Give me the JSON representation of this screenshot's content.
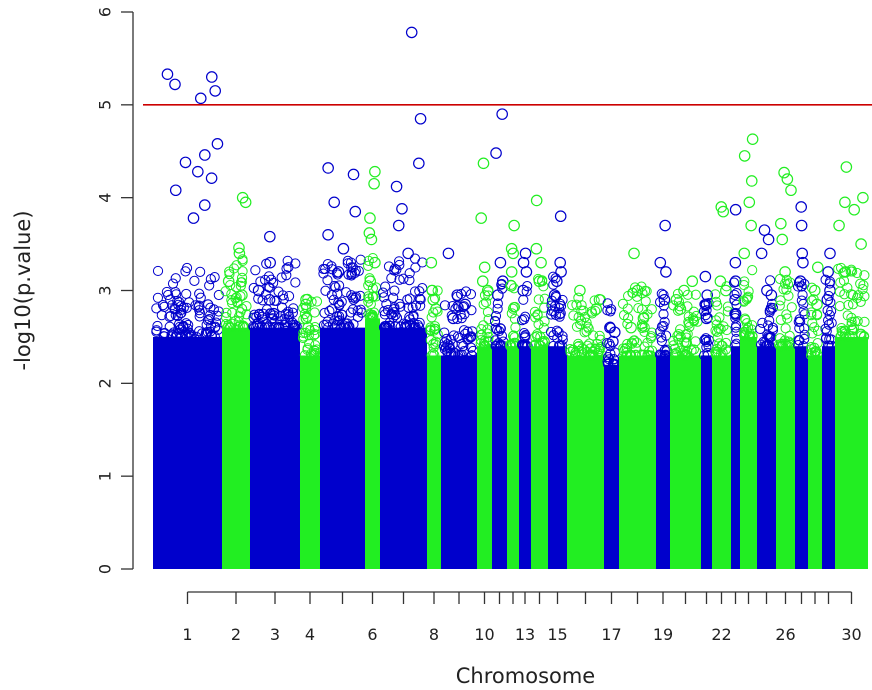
{
  "chart_data": {
    "type": "scatter",
    "xlabel": "Chromosome",
    "ylabel": "-log10(p.value)",
    "ylim": [
      0,
      6
    ],
    "y_ticks": [
      "0",
      "1",
      "2",
      "3",
      "4",
      "5",
      "6"
    ],
    "chromosome_labels": [
      "1",
      "2",
      "3",
      "4",
      "6",
      "8",
      "10",
      "13",
      "15",
      "17",
      "19",
      "22",
      "26",
      "30"
    ],
    "threshold": {
      "value": 5,
      "color": "#cc0000"
    },
    "colors": {
      "odd": "#0000cc",
      "even": "#22ee22"
    },
    "grid": false,
    "legend": "none",
    "chromosomes": [
      {
        "chr": 1,
        "dense_max": 2.5,
        "top_hits": [
          5.33,
          5.3,
          5.22,
          5.15,
          5.07,
          4.58,
          4.46,
          4.38,
          4.28,
          4.21,
          4.08,
          3.92,
          3.78
        ]
      },
      {
        "chr": 2,
        "dense_max": 2.6,
        "top_hits": [
          4.0,
          3.95,
          3.46,
          3.4,
          3.1,
          2.95
        ]
      },
      {
        "chr": 3,
        "dense_max": 2.6,
        "top_hits": [
          3.58,
          3.3,
          3.0,
          2.9,
          2.75
        ]
      },
      {
        "chr": 4,
        "dense_max": 2.3,
        "top_hits": [
          2.9,
          2.85,
          2.7,
          2.6
        ]
      },
      {
        "chr": 5,
        "dense_max": 2.6,
        "top_hits": [
          4.32,
          4.25,
          3.95,
          3.85,
          3.6,
          3.45,
          3.2
        ]
      },
      {
        "chr": 6,
        "dense_max": 2.7,
        "top_hits": [
          4.28,
          4.15,
          3.78,
          3.62,
          3.55,
          3.3,
          3.1
        ]
      },
      {
        "chr": 7,
        "dense_max": 2.6,
        "top_hits": [
          5.78,
          4.85,
          4.37,
          4.12,
          3.88,
          3.7,
          3.4
        ]
      },
      {
        "chr": 8,
        "dense_max": 2.3,
        "top_hits": [
          3.3,
          3.0,
          2.9,
          2.8
        ]
      },
      {
        "chr": 9,
        "dense_max": 2.3,
        "top_hits": [
          3.4,
          2.95,
          2.85,
          2.7
        ]
      },
      {
        "chr": 10,
        "dense_max": 2.4,
        "top_hits": [
          4.37,
          3.78,
          3.25,
          3.1,
          3.0
        ]
      },
      {
        "chr": 11,
        "dense_max": 2.4,
        "top_hits": [
          4.9,
          4.48,
          3.3,
          3.1,
          2.95
        ]
      },
      {
        "chr": 12,
        "dense_max": 2.4,
        "top_hits": [
          3.7,
          3.45,
          3.4,
          3.2,
          3.05
        ]
      },
      {
        "chr": 13,
        "dense_max": 2.4,
        "top_hits": [
          3.4,
          3.3,
          3.2,
          3.0
        ]
      },
      {
        "chr": 14,
        "dense_max": 2.4,
        "top_hits": [
          3.97,
          3.45,
          3.3,
          3.1
        ]
      },
      {
        "chr": 15,
        "dense_max": 2.4,
        "top_hits": [
          3.8,
          3.3,
          3.2,
          3.1,
          2.95
        ]
      },
      {
        "chr": 16,
        "dense_max": 2.3,
        "top_hits": [
          3.0,
          2.9,
          2.8
        ]
      },
      {
        "chr": 17,
        "dense_max": 2.2,
        "top_hits": [
          2.6,
          2.55,
          2.45
        ]
      },
      {
        "chr": 18,
        "dense_max": 2.3,
        "top_hits": [
          3.4,
          3.0,
          2.7,
          2.6
        ]
      },
      {
        "chr": 19,
        "dense_max": 2.3,
        "top_hits": [
          3.7,
          3.3,
          3.2,
          2.9
        ]
      },
      {
        "chr": 20,
        "dense_max": 2.3,
        "top_hits": [
          3.1,
          3.0,
          2.9,
          2.8
        ]
      },
      {
        "chr": 21,
        "dense_max": 2.3,
        "top_hits": [
          3.15,
          2.95,
          2.85,
          2.7
        ]
      },
      {
        "chr": 22,
        "dense_max": 2.3,
        "top_hits": [
          3.9,
          3.85,
          3.1,
          3.0
        ]
      },
      {
        "chr": 23,
        "dense_max": 2.4,
        "top_hits": [
          3.87,
          3.3,
          3.1,
          2.9,
          2.75
        ]
      },
      {
        "chr": 24,
        "dense_max": 2.5,
        "top_hits": [
          4.63,
          4.45,
          4.18,
          3.95,
          3.7,
          3.4
        ]
      },
      {
        "chr": 25,
        "dense_max": 2.4,
        "top_hits": [
          3.65,
          3.55,
          3.4,
          3.0,
          2.95
        ]
      },
      {
        "chr": 26,
        "dense_max": 2.4,
        "top_hits": [
          4.27,
          4.2,
          4.08,
          3.72,
          3.55,
          3.2
        ]
      },
      {
        "chr": 27,
        "dense_max": 2.4,
        "top_hits": [
          3.9,
          3.7,
          3.4,
          3.3,
          3.1
        ]
      },
      {
        "chr": 28,
        "dense_max": 2.3,
        "top_hits": [
          3.25,
          3.0,
          2.85
        ]
      },
      {
        "chr": 29,
        "dense_max": 2.4,
        "top_hits": [
          3.4,
          3.2,
          3.0,
          2.9
        ]
      },
      {
        "chr": 30,
        "dense_max": 2.5,
        "top_hits": [
          4.33,
          4.0,
          3.95,
          3.87,
          3.7,
          3.5,
          3.2
        ]
      }
    ]
  }
}
